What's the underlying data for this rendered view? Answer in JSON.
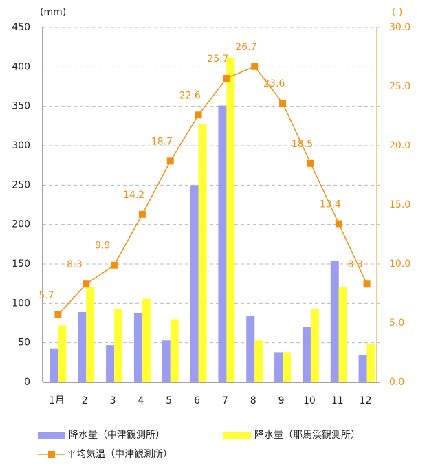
{
  "chart_data": {
    "type": "bar_line",
    "ylabel": "(mm)",
    "y2label": "( )",
    "categories": [
      "1月",
      "2",
      "3",
      "4",
      "5",
      "6",
      "7",
      "8",
      "9",
      "10",
      "11",
      "12"
    ],
    "series": [
      {
        "name": "降水量（中津観測所）",
        "type": "bar",
        "color": "#9c9cf0",
        "values": [
          43,
          89,
          47,
          88,
          53,
          250,
          351,
          84,
          38,
          70,
          154,
          34
        ]
      },
      {
        "name": "降水量（耶馬渓観測所）",
        "type": "bar",
        "color": "#ffff33",
        "values": [
          72,
          121,
          93,
          106,
          80,
          327,
          412,
          53,
          38,
          93,
          121,
          49
        ]
      },
      {
        "name": "平均気温（中津観測所）",
        "type": "line",
        "axis": "y2",
        "color": "#f09010",
        "values": [
          5.7,
          8.3,
          9.9,
          14.2,
          18.7,
          22.6,
          25.7,
          26.7,
          23.6,
          18.5,
          13.4,
          8.3
        ]
      }
    ],
    "ylim": [
      0,
      450
    ],
    "yticks": [
      0,
      50,
      100,
      150,
      200,
      250,
      300,
      350,
      400,
      450
    ],
    "y2lim": [
      0,
      30
    ],
    "y2ticks": [
      {
        "value": 0,
        "label": "0.0"
      },
      {
        "value": 5,
        "label": "5.0"
      },
      {
        "value": 10,
        "label": "10.0"
      },
      {
        "value": 15,
        "label": "15.0"
      },
      {
        "value": 20,
        "label": "20.0"
      },
      {
        "value": 25,
        "label": "25.0"
      },
      {
        "value": 30,
        "label": "30.0"
      }
    ],
    "grid": true
  }
}
